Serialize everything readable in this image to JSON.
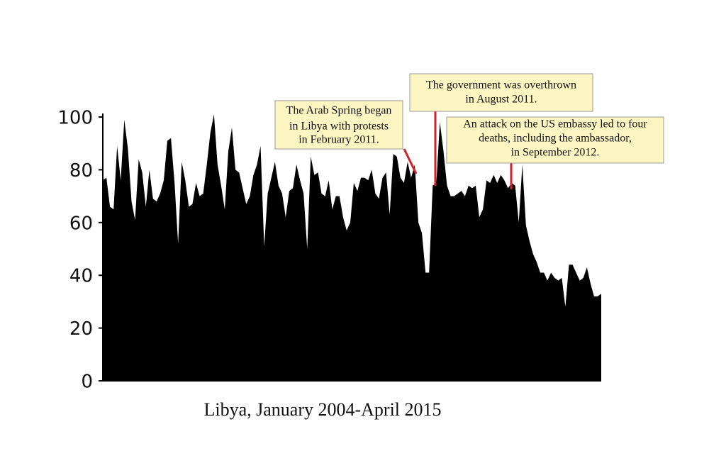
{
  "chart_data": {
    "type": "area",
    "xlabel": "Libya, January 2004-April 2015",
    "color": "#000000",
    "ylim": [
      0,
      100
    ],
    "yticks": [
      0,
      20,
      40,
      60,
      80,
      100
    ],
    "values": [
      76,
      77,
      66,
      65,
      89,
      76,
      99,
      88,
      68,
      61,
      84,
      79,
      66,
      80,
      69,
      68,
      71,
      76,
      91,
      92,
      75,
      52,
      83,
      76,
      66,
      67,
      75,
      70,
      71,
      82,
      94,
      101,
      82,
      74,
      65,
      87,
      96,
      80,
      79,
      73,
      67,
      70,
      78,
      82,
      89,
      51,
      71,
      77,
      83,
      74,
      71,
      62,
      72,
      73,
      82,
      76,
      71,
      50,
      85,
      78,
      79,
      71,
      70,
      76,
      65,
      70,
      70,
      62,
      57,
      60,
      75,
      72,
      77,
      77,
      76,
      80,
      71,
      69,
      77,
      79,
      63,
      86,
      85,
      77,
      75,
      83,
      77,
      82,
      60,
      56,
      41,
      41,
      74,
      75,
      98,
      87,
      74,
      70,
      70,
      71,
      72,
      70,
      74,
      73,
      74,
      62,
      65,
      76,
      75,
      78,
      75,
      78,
      76,
      73,
      75,
      74,
      60,
      82,
      59,
      53,
      48,
      45,
      41,
      41,
      38,
      41,
      39,
      38,
      39,
      28,
      44,
      44,
      41,
      38,
      39,
      43,
      37,
      32,
      32,
      33
    ],
    "annotations": [
      {
        "lines": [
          "The Arab Spring began",
          "in Libya with protests",
          "in February 2011."
        ]
      },
      {
        "lines": [
          "The government was overthrown",
          "in August 2011."
        ]
      },
      {
        "lines": [
          "An attack on the US embassy led to four",
          "deaths, including the ambassador,",
          "in September 2012."
        ]
      }
    ]
  }
}
